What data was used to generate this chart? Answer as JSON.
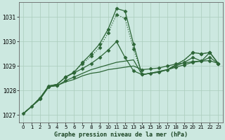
{
  "title": "Graphe pression niveau de la mer (hPa)",
  "background_color": "#cce8e0",
  "grid_color": "#aaccbb",
  "line_color": "#2d6637",
  "xlim": [
    -0.5,
    23.5
  ],
  "ylim": [
    1026.7,
    1031.6
  ],
  "yticks": [
    1027,
    1028,
    1029,
    1030,
    1031
  ],
  "xticks": [
    0,
    1,
    2,
    3,
    4,
    5,
    6,
    7,
    8,
    9,
    10,
    11,
    12,
    13,
    14,
    15,
    16,
    17,
    18,
    19,
    20,
    21,
    22,
    23
  ],
  "series": [
    {
      "x": [
        0,
        1,
        2,
        3,
        4,
        5,
        6,
        7,
        8,
        9,
        10,
        11,
        12,
        13,
        14,
        15,
        16,
        17,
        18,
        19,
        20,
        21,
        22,
        23
      ],
      "y": [
        1027.05,
        1027.35,
        1027.65,
        1028.15,
        1028.2,
        1028.35,
        1028.45,
        1028.6,
        1028.7,
        1028.75,
        1028.85,
        1028.9,
        1028.95,
        1029.0,
        1028.85,
        1028.88,
        1028.92,
        1029.0,
        1029.08,
        1029.12,
        1029.18,
        1029.2,
        1029.22,
        1029.1
      ],
      "linestyle": "-",
      "marker": true,
      "markevery": [
        0,
        1,
        2,
        3,
        4,
        14,
        15,
        16,
        17,
        18,
        19,
        20,
        21,
        22,
        23
      ]
    },
    {
      "x": [
        0,
        1,
        2,
        3,
        4,
        5,
        6,
        7,
        8,
        9,
        10,
        11,
        12,
        13,
        14,
        15,
        16,
        17,
        18,
        19,
        20,
        21,
        22,
        23
      ],
      "y": [
        1027.05,
        1027.35,
        1027.65,
        1028.15,
        1028.2,
        1028.4,
        1028.55,
        1028.7,
        1028.85,
        1028.95,
        1029.05,
        1029.15,
        1029.2,
        1029.25,
        1028.65,
        1028.7,
        1028.75,
        1028.85,
        1028.95,
        1029.05,
        1029.15,
        1029.2,
        1029.35,
        1029.1
      ],
      "linestyle": "-",
      "marker": true,
      "markevery": [
        2,
        3,
        4,
        5,
        6,
        14,
        15,
        16,
        17,
        18,
        19,
        20,
        21,
        22,
        23
      ]
    },
    {
      "x": [
        0,
        1,
        2,
        3,
        4,
        5,
        6,
        7,
        8,
        9,
        10,
        11,
        12,
        13,
        14,
        15,
        16,
        17,
        18,
        19,
        20,
        21,
        22,
        23
      ],
      "y": [
        1027.05,
        1027.35,
        1027.7,
        1028.18,
        1028.25,
        1028.55,
        1028.72,
        1028.9,
        1029.1,
        1029.35,
        1029.65,
        1030.0,
        1029.35,
        1028.8,
        1028.65,
        1028.7,
        1028.75,
        1028.85,
        1029.0,
        1029.15,
        1029.35,
        1029.2,
        1029.55,
        1029.1
      ],
      "linestyle": "-",
      "marker": true,
      "markevery": [
        2,
        3,
        5,
        6,
        7,
        8,
        9,
        10,
        11,
        12,
        13,
        14,
        19,
        20,
        22,
        23
      ]
    },
    {
      "x": [
        0,
        1,
        2,
        3,
        4,
        5,
        6,
        7,
        8,
        9,
        10,
        11,
        12,
        13,
        14,
        15,
        16,
        17,
        18,
        19,
        20,
        21,
        22,
        23
      ],
      "y": [
        1027.05,
        1027.35,
        1027.7,
        1028.18,
        1028.25,
        1028.55,
        1028.75,
        1029.1,
        1029.4,
        1029.75,
        1030.35,
        1031.1,
        1030.95,
        1029.7,
        1028.65,
        1028.7,
        1028.78,
        1028.85,
        1029.05,
        1029.25,
        1029.55,
        1029.5,
        1029.55,
        1029.1
      ],
      "linestyle": ":",
      "marker": true,
      "markevery": [
        5,
        6,
        7,
        8,
        9,
        10,
        11,
        12,
        13,
        20,
        21,
        22
      ]
    },
    {
      "x": [
        0,
        1,
        2,
        3,
        4,
        5,
        6,
        7,
        8,
        9,
        10,
        11,
        12,
        13,
        14,
        15,
        16,
        17,
        18,
        19,
        20,
        21,
        22,
        23
      ],
      "y": [
        1027.05,
        1027.35,
        1027.7,
        1028.18,
        1028.25,
        1028.55,
        1028.75,
        1029.15,
        1029.5,
        1029.9,
        1030.5,
        1031.35,
        1031.25,
        1029.9,
        1028.65,
        1028.7,
        1028.78,
        1028.85,
        1029.05,
        1029.25,
        1029.55,
        1029.5,
        1029.55,
        1029.1
      ],
      "linestyle": "-",
      "marker": true,
      "markevery": [
        5,
        6,
        7,
        8,
        9,
        10,
        11,
        12,
        13,
        20,
        21,
        22
      ]
    }
  ],
  "marker_style": "D",
  "markersize": 2.5,
  "linewidth": 0.9
}
